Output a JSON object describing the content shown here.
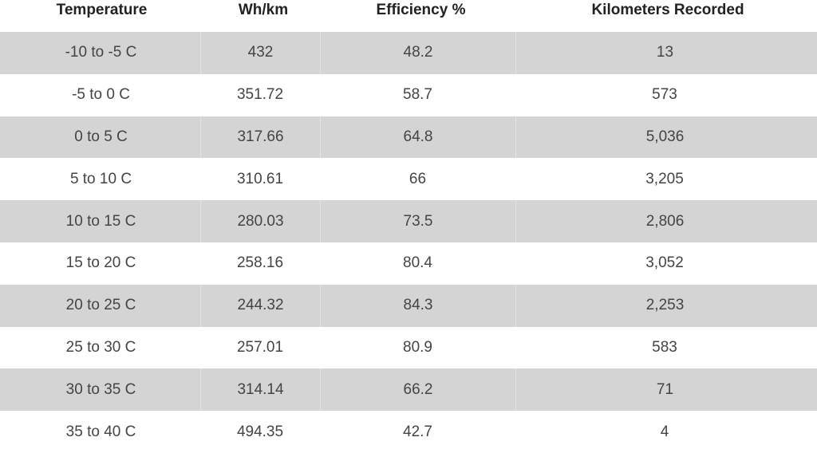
{
  "headers": {
    "temperature": "Temperature",
    "wh_km": "Wh/km",
    "efficiency": "Efficiency %",
    "kilometers": "Kilometers Recorded"
  },
  "rows": [
    {
      "temperature": "-10 to -5 C",
      "wh_km": "432",
      "efficiency": "48.2",
      "kilometers": "13"
    },
    {
      "temperature": "-5 to 0 C",
      "wh_km": "351.72",
      "efficiency": "58.7",
      "kilometers": "573"
    },
    {
      "temperature": "0 to 5 C",
      "wh_km": "317.66",
      "efficiency": "64.8",
      "kilometers": "5,036"
    },
    {
      "temperature": "5 to 10 C",
      "wh_km": "310.61",
      "efficiency": "66",
      "kilometers": "3,205"
    },
    {
      "temperature": "10 to 15 C",
      "wh_km": "280.03",
      "efficiency": "73.5",
      "kilometers": "2,806"
    },
    {
      "temperature": "15 to 20 C",
      "wh_km": "258.16",
      "efficiency": "80.4",
      "kilometers": "3,052"
    },
    {
      "temperature": "20 to 25 C",
      "wh_km": "244.32",
      "efficiency": "84.3",
      "kilometers": "2,253"
    },
    {
      "temperature": "25 to 30 C",
      "wh_km": "257.01",
      "efficiency": "80.9",
      "kilometers": "583"
    },
    {
      "temperature": "30 to 35 C",
      "wh_km": "314.14",
      "efficiency": "66.2",
      "kilometers": "71"
    },
    {
      "temperature": "35 to 40 C",
      "wh_km": "494.35",
      "efficiency": "42.7",
      "kilometers": "4"
    }
  ],
  "colors": {
    "shaded_row": "#d4d4d4",
    "plain_row": "#ffffff"
  }
}
